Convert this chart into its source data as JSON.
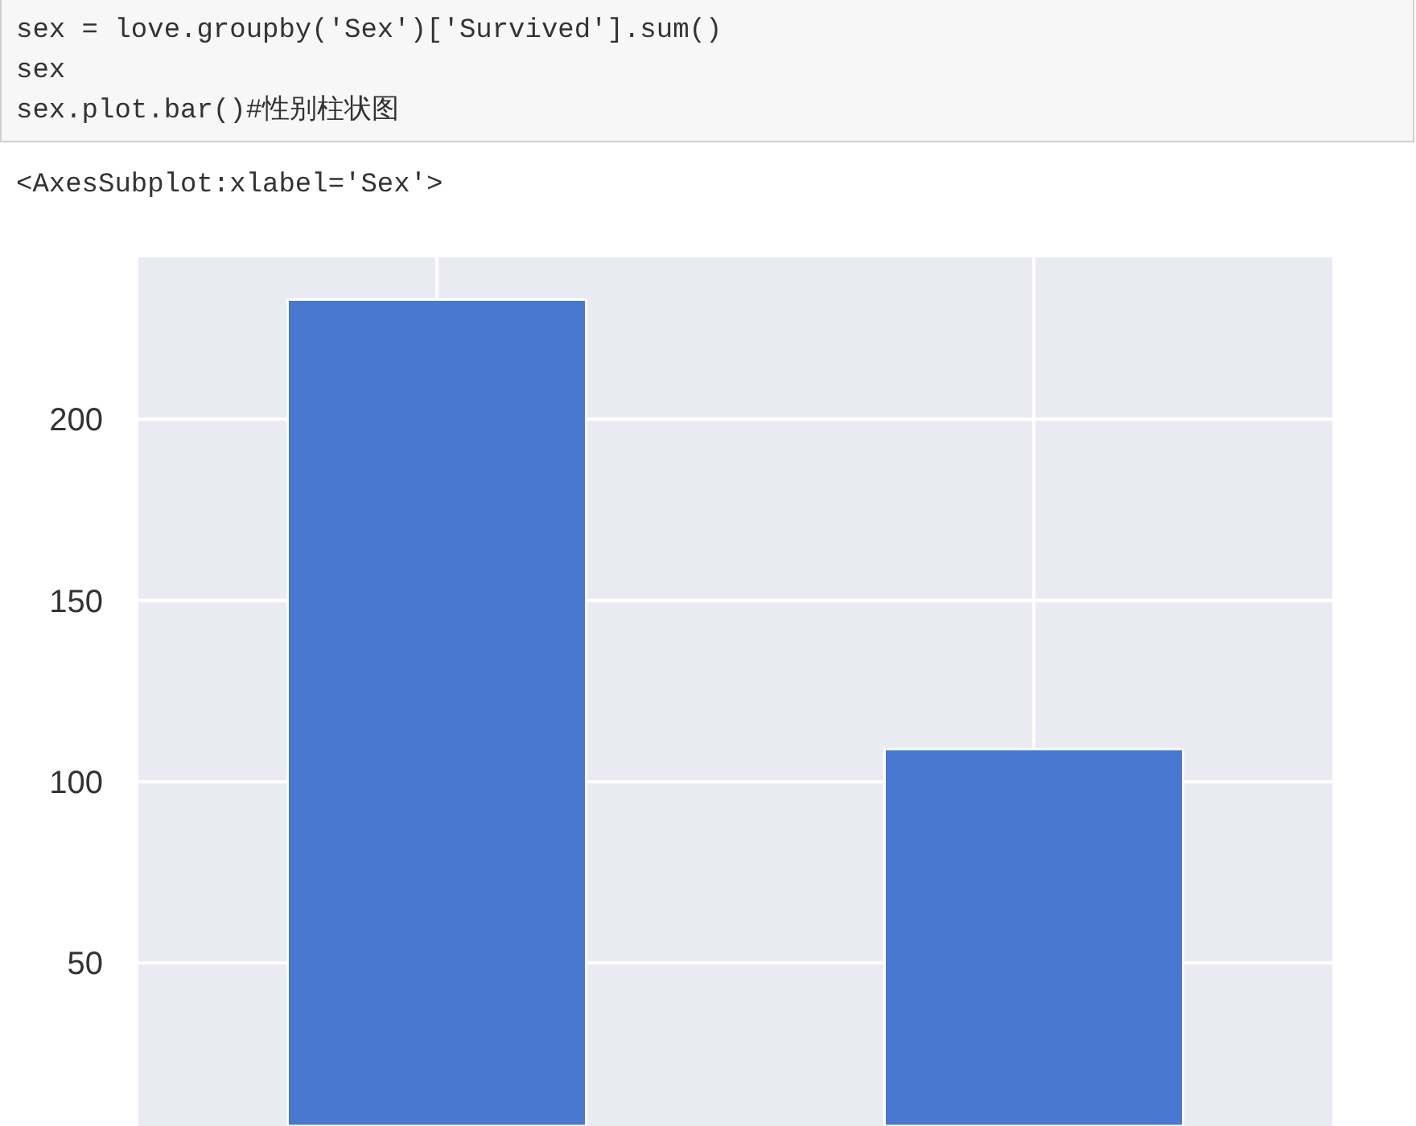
{
  "chart_data": {
    "type": "bar",
    "categories": [
      null,
      null
    ],
    "values": [
      233,
      109
    ],
    "color": "#4878cf",
    "ylim": [
      5,
      244.65
    ],
    "yticks": [
      50,
      100,
      150,
      200
    ],
    "grid": true,
    "annotations": [
      "sex = love.groupby('Sex')['Survived'].sum()",
      "sex",
      "sex.plot.bar()#性别柱状图",
      "<AxesSubplot:xlabel='Sex'>"
    ]
  }
}
